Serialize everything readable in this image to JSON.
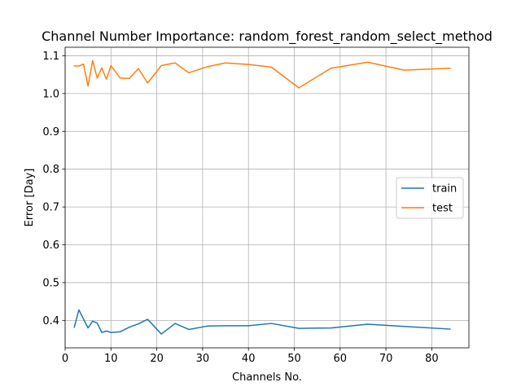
{
  "chart_data": {
    "type": "line",
    "title": "Channel Number Importance: random_forest_random_select_method",
    "xlabel": "Channels No.",
    "ylabel": "Error [Day]",
    "xlim": [
      0,
      88.1
    ],
    "ylim": [
      0.3275,
      1.1225
    ],
    "xticks": [
      0,
      10,
      20,
      30,
      40,
      50,
      60,
      70,
      80
    ],
    "yticks": [
      0.4,
      0.5,
      0.6,
      0.7,
      0.8,
      0.9,
      1.0,
      1.1
    ],
    "grid": true,
    "legend_position": "center-right",
    "series": [
      {
        "name": "train",
        "color": "#1f77b4",
        "x": [
          2,
          3,
          5,
          6,
          7,
          8,
          9,
          10,
          12,
          14,
          16,
          18,
          21,
          24,
          27,
          31,
          35,
          40,
          45,
          51,
          58,
          66,
          74,
          84
        ],
        "y": [
          0.382,
          0.428,
          0.38,
          0.398,
          0.393,
          0.368,
          0.372,
          0.368,
          0.37,
          0.382,
          0.391,
          0.403,
          0.364,
          0.392,
          0.376,
          0.385,
          0.386,
          0.386,
          0.392,
          0.379,
          0.38,
          0.39,
          0.384,
          0.377
        ]
      },
      {
        "name": "test",
        "color": "#ff7f0e",
        "x": [
          2,
          3,
          4,
          5,
          6,
          7,
          8,
          9,
          10,
          12,
          14,
          16,
          18,
          21,
          24,
          27,
          31,
          35,
          40,
          45,
          51,
          58,
          66,
          74,
          84
        ],
        "y": [
          1.073,
          1.073,
          1.078,
          1.02,
          1.087,
          1.041,
          1.068,
          1.038,
          1.074,
          1.041,
          1.04,
          1.066,
          1.028,
          1.074,
          1.081,
          1.055,
          1.071,
          1.081,
          1.077,
          1.07,
          1.015,
          1.067,
          1.083,
          1.062,
          1.067
        ]
      }
    ]
  }
}
